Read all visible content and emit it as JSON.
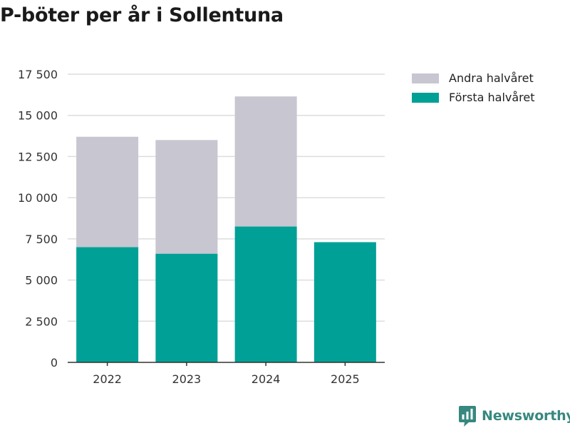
{
  "chart_data": {
    "type": "bar",
    "stacked": true,
    "title": "P-böter per år i Sollentuna",
    "xlabel": "",
    "ylabel": "",
    "categories": [
      "2022",
      "2023",
      "2024",
      "2025"
    ],
    "series": [
      {
        "name": "Första halvåret",
        "color": "#00a096",
        "values": [
          7000,
          6600,
          8250,
          7300
        ]
      },
      {
        "name": "Andra halvåret",
        "color": "#c7c6d1",
        "values": [
          6700,
          6900,
          7900,
          null
        ]
      }
    ],
    "ylim": [
      0,
      17500
    ],
    "yticks": [
      0,
      2500,
      5000,
      7500,
      10000,
      12500,
      15000,
      17500
    ],
    "ytick_labels": [
      "0",
      "2 500",
      "5 000",
      "7 500",
      "10 000",
      "12 500",
      "15 000",
      "17 500"
    ],
    "grid": true,
    "legend": {
      "position": "top-right",
      "entries": [
        {
          "label": "Andra halvåret",
          "color": "#c7c6d1"
        },
        {
          "label": "Första halvåret",
          "color": "#00a096"
        }
      ]
    }
  },
  "colors": {
    "brand": "#37887f",
    "grid": "#dddddd",
    "axis": "#333333"
  },
  "brand": {
    "name": "Newsworthy",
    "icon": "newsworthy-logo-icon"
  }
}
